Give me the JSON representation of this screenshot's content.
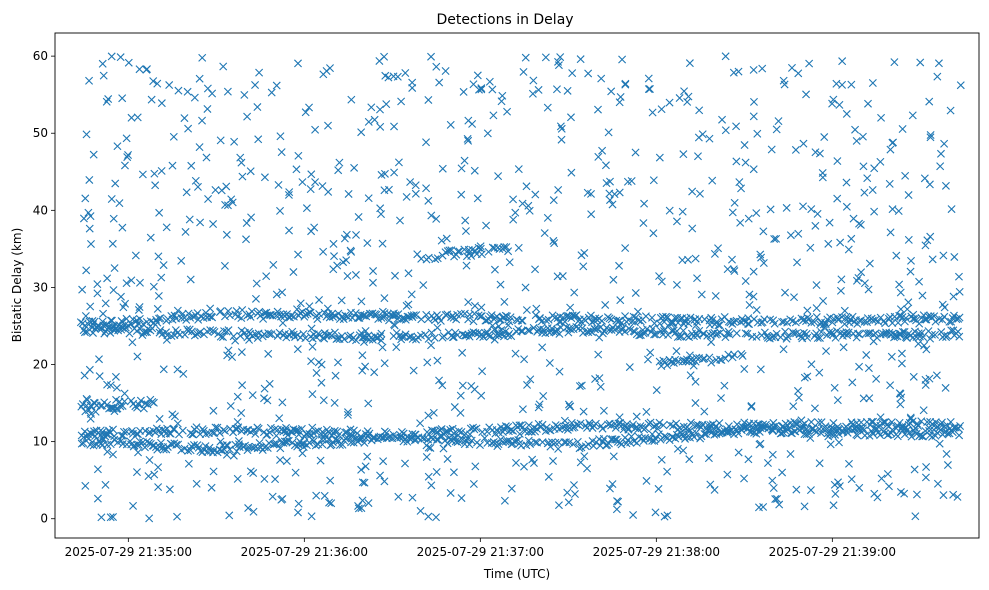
{
  "chart_data": {
    "type": "scatter",
    "title": "Detections in Delay",
    "xlabel": "Time (UTC)",
    "ylabel": "Bistatic Delay (km)",
    "marker": "x",
    "color": "#1f77b4",
    "grid": false,
    "xlim": [
      "2025-07-29 21:34:35",
      "2025-07-29 21:39:50"
    ],
    "ylim": [
      -2.5,
      63
    ],
    "x_ticks": [
      "2025-07-29 21:35:00",
      "2025-07-29 21:36:00",
      "2025-07-29 21:37:00",
      "2025-07-29 21:38:00",
      "2025-07-29 21:39:00"
    ],
    "y_ticks": [
      0,
      10,
      20,
      30,
      40,
      50,
      60
    ],
    "series": [
      {
        "time_start": "2025-07-29 21:34:44",
        "time_end": "2025-07-29 21:39:44",
        "tracks": [
          {
            "x": [
              "2025-07-29 21:34:44",
              "2025-07-29 21:35:30",
              "2025-07-29 21:36:30",
              "2025-07-29 21:37:30",
              "2025-07-29 21:38:30",
              "2025-07-29 21:39:44"
            ],
            "y": [
              25.0,
              26.5,
              26.2,
              26.0,
              25.5,
              26.0
            ]
          },
          {
            "x": [
              "2025-07-29 21:34:44",
              "2025-07-29 21:35:30",
              "2025-07-29 21:36:30",
              "2025-07-29 21:37:30",
              "2025-07-29 21:38:30",
              "2025-07-29 21:39:44"
            ],
            "y": [
              24.5,
              24.0,
              23.5,
              24.5,
              23.8,
              24.0
            ]
          },
          {
            "x": [
              "2025-07-29 21:34:44",
              "2025-07-29 21:35:30",
              "2025-07-29 21:36:30",
              "2025-07-29 21:37:30",
              "2025-07-29 21:38:30",
              "2025-07-29 21:39:44"
            ],
            "y": [
              11.0,
              11.5,
              10.8,
              12.0,
              12.0,
              12.2
            ]
          },
          {
            "x": [
              "2025-07-29 21:34:44",
              "2025-07-29 21:35:30",
              "2025-07-29 21:36:30",
              "2025-07-29 21:37:30",
              "2025-07-29 21:38:30",
              "2025-07-29 21:39:44"
            ],
            "y": [
              10.0,
              9.0,
              10.5,
              9.5,
              11.5,
              11.0
            ]
          },
          {
            "x": [
              "2025-07-29 21:34:44",
              "2025-07-29 21:35:10"
            ],
            "y": [
              14.5,
              15.0
            ]
          },
          {
            "x": [
              "2025-07-29 21:38:00",
              "2025-07-29 21:38:30"
            ],
            "y": [
              20.0,
              21.0
            ]
          },
          {
            "x": [
              "2025-07-29 21:36:40",
              "2025-07-29 21:37:10"
            ],
            "y": [
              34.0,
              35.0
            ]
          }
        ],
        "background_clutter": {
          "y_range": [
            0,
            60
          ]
        }
      }
    ]
  }
}
